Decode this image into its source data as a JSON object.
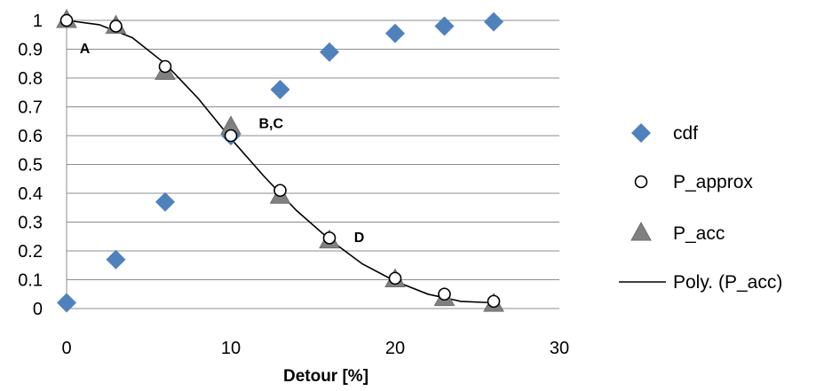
{
  "chart_data": {
    "type": "scatter",
    "title": "",
    "xlabel": "Detour [%]",
    "ylabel": "",
    "xlim": [
      0,
      30
    ],
    "ylim": [
      0,
      1
    ],
    "x_ticks": [
      "0",
      "10",
      "20",
      "30"
    ],
    "y_ticks": [
      "0",
      "0.1",
      "0.2",
      "0.3",
      "0.4",
      "0.5",
      "0.6",
      "0.7",
      "0.8",
      "0.9",
      "1"
    ],
    "grid": "horizontal",
    "legend_position": "right",
    "series": [
      {
        "name": "cdf",
        "marker": "diamond",
        "color": "#4f81bd",
        "x": [
          0,
          3,
          6,
          10,
          13,
          16,
          20,
          23,
          26
        ],
        "y": [
          0.02,
          0.17,
          0.37,
          0.6,
          0.76,
          0.89,
          0.955,
          0.98,
          0.995
        ]
      },
      {
        "name": "P_approx",
        "marker": "circle-open",
        "color": "#000000",
        "x": [
          0,
          3,
          6,
          10,
          13,
          16,
          20,
          23,
          26
        ],
        "y": [
          1.0,
          0.98,
          0.84,
          0.6,
          0.41,
          0.245,
          0.105,
          0.05,
          0.025
        ]
      },
      {
        "name": "P_acc",
        "marker": "triangle",
        "color": "#808080",
        "x": [
          0,
          3,
          6,
          10,
          13,
          16,
          20,
          23,
          26
        ],
        "y": [
          1.0,
          0.98,
          0.82,
          0.63,
          0.39,
          0.235,
          0.1,
          0.035,
          0.015
        ]
      },
      {
        "name": "Poly. (P_acc)",
        "marker": "line",
        "color": "#000000",
        "x": [
          0,
          2,
          4,
          6,
          8,
          10,
          12,
          14,
          16,
          18,
          20,
          22,
          24,
          26
        ],
        "y": [
          1.0,
          0.985,
          0.94,
          0.85,
          0.73,
          0.59,
          0.46,
          0.34,
          0.24,
          0.155,
          0.095,
          0.05,
          0.025,
          0.02
        ]
      }
    ],
    "annotations": [
      {
        "text": "A",
        "x": 0.8,
        "y": 0.905
      },
      {
        "text": "B,C",
        "x": 11.7,
        "y": 0.645
      },
      {
        "text": "D",
        "x": 17.5,
        "y": 0.25
      }
    ]
  }
}
